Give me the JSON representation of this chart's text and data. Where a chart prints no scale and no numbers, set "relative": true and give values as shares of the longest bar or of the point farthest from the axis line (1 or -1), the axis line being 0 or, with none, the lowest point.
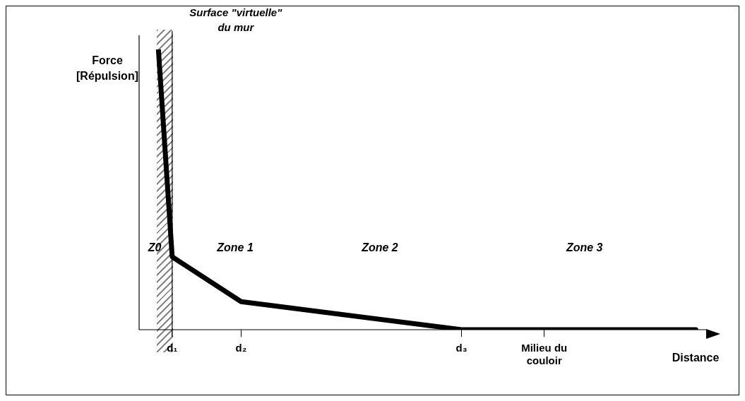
{
  "chart_data": {
    "type": "line",
    "relative": true,
    "xlabel": "Distance",
    "ylabel": "Force [Répulsion]",
    "categories": [
      null,
      "d₁",
      null,
      null,
      null,
      null,
      "d₂",
      null,
      null,
      null,
      null,
      null,
      null,
      null,
      null,
      null,
      null,
      null,
      null,
      null,
      null,
      null,
      "d₃",
      null,
      null,
      null,
      null,
      null,
      "Milieu du couloir",
      null,
      null,
      null,
      null,
      null,
      null,
      null,
      null,
      null,
      null,
      null
    ],
    "series": [
      {
        "color": "#000000",
        "values": [
          1,
          0.26,
          null,
          null,
          null,
          null,
          0.1,
          null,
          null,
          null,
          null,
          null,
          null,
          null,
          null,
          null,
          null,
          null,
          null,
          null,
          null,
          null,
          0,
          null,
          null,
          null,
          null,
          null,
          null,
          null,
          null,
          null,
          null,
          null,
          null,
          null,
          null,
          null,
          null,
          0
        ]
      }
    ],
    "ref_lines": [
      {
        "axis": "x",
        "value": "d₁",
        "label": "Surface \"virtuelle\" du mur"
      }
    ],
    "annotations": [
      "Z0",
      "Zone 1",
      "Zone 2",
      "Zone 3"
    ],
    "grid": false,
    "legend": false,
    "marker": "none",
    "line_style": "solid"
  }
}
